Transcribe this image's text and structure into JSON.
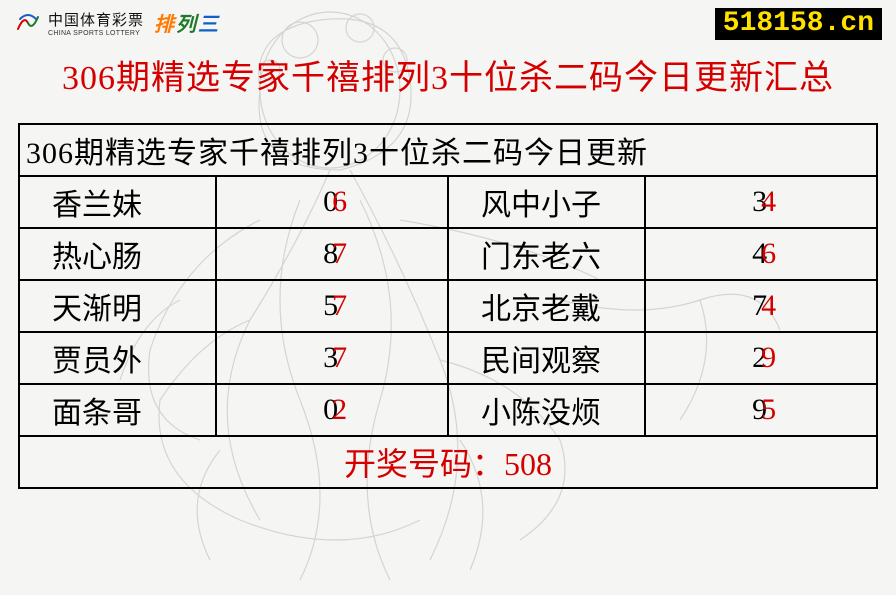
{
  "colors": {
    "title_red": "#d40000",
    "black": "#000000",
    "url_bg": "#000000",
    "url_fg": "#ffe100",
    "pls_pai": "#ff7a00",
    "pls_lie": "#1e7a2a",
    "pls_san": "#1060c9",
    "bg_art": "#555555"
  },
  "logo": {
    "cn": "中国体育彩票",
    "en": "CHINA SPORTS LOTTERY",
    "pls": [
      "排",
      "列",
      "三"
    ]
  },
  "url": "518158.cn",
  "title": "306期精选专家千禧排列3十位杀二码今日更新汇总",
  "table": {
    "header": "306期精选专家千禧排列3十位杀二码今日更新",
    "rows": [
      {
        "n1": "香兰妹",
        "v1": [
          "0",
          "6"
        ],
        "n2": "风中小子",
        "v2": [
          "3",
          "4"
        ]
      },
      {
        "n1": "热心肠",
        "v1": [
          "8",
          "7"
        ],
        "n2": "门东老六",
        "v2": [
          "4",
          "6"
        ]
      },
      {
        "n1": "天渐明",
        "v1": [
          "5",
          "7"
        ],
        "n2": "北京老戴",
        "v2": [
          "7",
          "4"
        ]
      },
      {
        "n1": "贾员外",
        "v1": [
          "3",
          "7"
        ],
        "n2": "民间观察",
        "v2": [
          "2",
          "9"
        ]
      },
      {
        "n1": "面条哥",
        "v1": [
          "0",
          "2"
        ],
        "n2": "小陈没烦",
        "v2": [
          "9",
          "5"
        ]
      }
    ],
    "footer": "开奖号码：508"
  },
  "fontsizes": {
    "title": 34,
    "cell": 30,
    "footer": 32,
    "url": 28
  }
}
